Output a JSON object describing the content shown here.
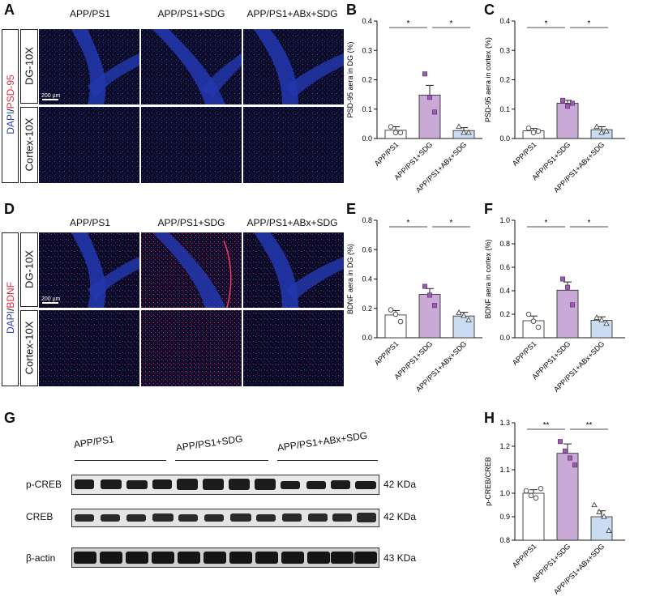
{
  "panels": {
    "A": "A",
    "B": "B",
    "C": "C",
    "D": "D",
    "E": "E",
    "F": "F",
    "G": "G",
    "H": "H"
  },
  "groups": [
    "APP/PS1",
    "APP/PS1+SDG",
    "APP/PS1+ABx+SDG"
  ],
  "microscopy": {
    "psd95": {
      "stain_dapi": "DAPI",
      "stain_sep": "/",
      "stain_marker": "PSD-95",
      "rows": [
        "DG-10X",
        "Cortex-10X"
      ],
      "scale_bar": "200 µm"
    },
    "bdnf": {
      "stain_dapi": "DAPI",
      "stain_sep": "/",
      "stain_marker": "BDNF",
      "rows": [
        "DG-10X",
        "Cortex-10X"
      ],
      "scale_bar": "200 µm"
    }
  },
  "colors": {
    "dapi_blue": "#2b3fb8",
    "marker_red": "#e0283a",
    "bar_app": "#ffffff",
    "bar_sdg": "#c9a9d6",
    "bar_abx": "#c9dcf2",
    "point_sdg": "#9b5bb0",
    "point_abx": "#7a9cc6"
  },
  "western": {
    "bands": [
      "p-CREB",
      "CREB",
      "β-actin"
    ],
    "sizes": [
      "42 KDa",
      "42 KDa",
      "43 KDa"
    ],
    "group_labels": [
      "APP/PS1",
      "APP/PS1+SDG",
      "APP/PS1+ABx+SDG"
    ]
  },
  "chart_data": [
    {
      "panel": "B",
      "type": "bar",
      "categories": [
        "APP/PS1",
        "APP/PS1+SDG",
        "APP/PS1+ABx+SDG"
      ],
      "values": [
        0.028,
        0.148,
        0.027
      ],
      "errors": [
        0.012,
        0.033,
        0.01
      ],
      "points": [
        [
          0.04,
          0.02,
          0.02
        ],
        [
          0.22,
          0.14,
          0.09
        ],
        [
          0.04,
          0.02,
          0.02
        ]
      ],
      "ylabel": "PSD-95 aera in DG (%)",
      "ylim": [
        0,
        0.4
      ],
      "yticks": [
        "0.0",
        "0.1",
        "0.2",
        "0.3",
        "0.4"
      ],
      "significance": [
        {
          "from": 0,
          "to": 1,
          "label": "*"
        },
        {
          "from": 1,
          "to": 2,
          "label": "*"
        }
      ]
    },
    {
      "panel": "C",
      "type": "bar",
      "categories": [
        "APP/PS1",
        "APP/PS1+SDG",
        "APP/PS1+ABx+SDG"
      ],
      "values": [
        0.026,
        0.12,
        0.03
      ],
      "errors": [
        0.008,
        0.01,
        0.01
      ],
      "points": [
        [
          0.035,
          0.02,
          0.025
        ],
        [
          0.13,
          0.11,
          0.12
        ],
        [
          0.04,
          0.02,
          0.025
        ]
      ],
      "ylabel": "PSD-95 aera in cortex (%)",
      "ylim": [
        0,
        0.4
      ],
      "yticks": [
        "0.0",
        "0.1",
        "0.2",
        "0.3",
        "0.4"
      ],
      "significance": [
        {
          "from": 0,
          "to": 1,
          "label": "*"
        },
        {
          "from": 1,
          "to": 2,
          "label": "*"
        }
      ]
    },
    {
      "panel": "E",
      "type": "bar",
      "categories": [
        "APP/PS1",
        "APP/PS1+SDG",
        "APP/PS1+ABx+SDG"
      ],
      "values": [
        0.155,
        0.295,
        0.148
      ],
      "errors": [
        0.03,
        0.04,
        0.025
      ],
      "points": [
        [
          0.19,
          0.16,
          0.11
        ],
        [
          0.35,
          0.29,
          0.22
        ],
        [
          0.17,
          0.15,
          0.12
        ]
      ],
      "ylabel": "BDNF aera in DG (%)",
      "ylim": [
        0,
        0.8
      ],
      "yticks": [
        "0.0",
        "0.2",
        "0.4",
        "0.6",
        "0.8"
      ],
      "significance": [
        {
          "from": 0,
          "to": 1,
          "label": "*"
        },
        {
          "from": 1,
          "to": 2,
          "label": "*"
        }
      ]
    },
    {
      "panel": "F",
      "type": "bar",
      "categories": [
        "APP/PS1",
        "APP/PS1+SDG",
        "APP/PS1+ABx+SDG"
      ],
      "values": [
        0.145,
        0.405,
        0.148
      ],
      "errors": [
        0.04,
        0.07,
        0.03
      ],
      "points": [
        [
          0.2,
          0.14,
          0.09
        ],
        [
          0.5,
          0.43,
          0.28
        ],
        [
          0.17,
          0.15,
          0.12
        ]
      ],
      "ylabel": "BDNF aera in cortex (%)",
      "ylim": [
        0,
        1.0
      ],
      "yticks": [
        "0.0",
        "0.2",
        "0.4",
        "0.6",
        "0.8",
        "1.0"
      ],
      "significance": [
        {
          "from": 0,
          "to": 1,
          "label": "*"
        },
        {
          "from": 1,
          "to": 2,
          "label": "*"
        }
      ]
    },
    {
      "panel": "H",
      "type": "bar",
      "categories": [
        "APP/PS1",
        "APP/PS1+SDG",
        "APP/PS1+ABx+SDG"
      ],
      "values": [
        1.0,
        1.17,
        0.9
      ],
      "errors": [
        0.015,
        0.04,
        0.025
      ],
      "points": [
        [
          1.01,
          0.99,
          0.98,
          1.02
        ],
        [
          1.22,
          1.18,
          1.15,
          1.12
        ],
        [
          0.95,
          0.92,
          0.9,
          0.84
        ]
      ],
      "ylabel": "p-CREB/CREB",
      "ylim": [
        0.8,
        1.3
      ],
      "yticks": [
        "0.8",
        "0.9",
        "1.0",
        "1.1",
        "1.2",
        "1.3"
      ],
      "significance": [
        {
          "from": 0,
          "to": 1,
          "label": "**"
        },
        {
          "from": 1,
          "to": 2,
          "label": "**"
        }
      ]
    }
  ]
}
